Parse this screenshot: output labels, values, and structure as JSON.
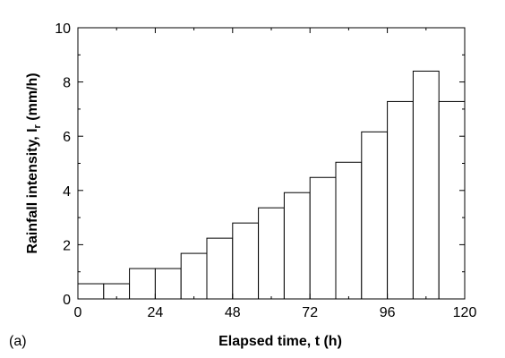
{
  "chart_data": {
    "type": "bar",
    "panel_label": "(a)",
    "xlabel": "Elapsed time, t (h)",
    "ylabel_main": "Rainfall intensity, I",
    "ylabel_sub": "r",
    "ylabel_unit": " (mm/h)",
    "xlim": [
      0,
      120
    ],
    "ylim": [
      0,
      10
    ],
    "xticks": [
      0,
      24,
      48,
      72,
      96,
      120
    ],
    "yticks": [
      0,
      2,
      4,
      6,
      8,
      10
    ],
    "bin_width": 8,
    "x_start": [
      0,
      8,
      16,
      24,
      32,
      40,
      48,
      56,
      64,
      72,
      80,
      88,
      96,
      104,
      112
    ],
    "values": [
      0.56,
      0.56,
      1.12,
      1.12,
      1.68,
      2.24,
      2.8,
      3.36,
      3.92,
      4.48,
      5.04,
      6.16,
      7.28,
      8.4,
      7.28
    ],
    "grid": false,
    "legend": "none"
  }
}
